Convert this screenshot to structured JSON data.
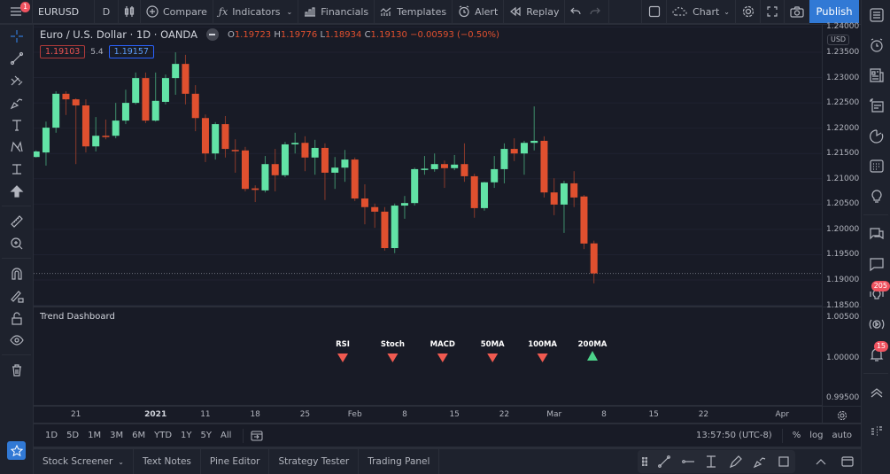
{
  "topbar": {
    "menu_badge": "1",
    "symbol": "EURUSD",
    "interval": "D",
    "compare": "Compare",
    "indicators": "Indicators",
    "financials": "Financials",
    "templates": "Templates",
    "alert": "Alert",
    "replay": "Replay",
    "layout": "Chart",
    "publish": "Publish"
  },
  "legend": {
    "title": "Euro / U.S. Dollar · 1D · OANDA",
    "o_label": "O",
    "o": "1.19723",
    "h_label": "H",
    "h": "1.19776",
    "l_label": "L",
    "l": "1.18934",
    "c_label": "C",
    "c": "1.19130",
    "change": "−0.00593 (−0.50%)",
    "bid": "1.19103",
    "spread": "5.4",
    "ask": "1.19157"
  },
  "price_axis": {
    "currency": "USD",
    "labels": [
      "1.24000",
      "1.23500",
      "1.23000",
      "1.22500",
      "1.22000",
      "1.21500",
      "1.21000",
      "1.20500",
      "1.20000",
      "1.19500",
      "1.19000",
      "1.18500"
    ],
    "pane2_labels": [
      "1.00500",
      "1.00000",
      "0.99500"
    ]
  },
  "colors": {
    "up": "#62e3a6",
    "down": "#e0502f",
    "background": "#181b26",
    "accent": "#3179d5",
    "signal_down": "#f05a50",
    "signal_up": "#4cd38a"
  },
  "chart_data": {
    "type": "candlestick",
    "symbol": "EURUSD",
    "ylim": [
      1.185,
      1.24
    ],
    "ohlc": [
      [
        1.2143,
        1.2156,
        1.2142,
        1.2154
      ],
      [
        1.2152,
        1.2213,
        1.2126,
        1.2201
      ],
      [
        1.2201,
        1.2273,
        1.2191,
        1.2268
      ],
      [
        1.2268,
        1.2273,
        1.2226,
        1.2257
      ],
      [
        1.2257,
        1.2259,
        1.2129,
        1.2245
      ],
      [
        1.2245,
        1.2257,
        1.2152,
        1.2164
      ],
      [
        1.2164,
        1.2222,
        1.2154,
        1.2185
      ],
      [
        1.2185,
        1.2217,
        1.2178,
        1.2184
      ],
      [
        1.2185,
        1.225,
        1.218,
        1.2215
      ],
      [
        1.2215,
        1.2276,
        1.2208,
        1.225
      ],
      [
        1.225,
        1.231,
        1.2247,
        1.2299
      ],
      [
        1.2299,
        1.231,
        1.221,
        1.2215
      ],
      [
        1.2215,
        1.231,
        1.2213,
        1.2254
      ],
      [
        1.2252,
        1.2306,
        1.2247,
        1.2299
      ],
      [
        1.2299,
        1.235,
        1.2266,
        1.2327
      ],
      [
        1.2327,
        1.2345,
        1.2247,
        1.2268
      ],
      [
        1.2268,
        1.2285,
        1.2194,
        1.222
      ],
      [
        1.222,
        1.2227,
        1.2133,
        1.215
      ],
      [
        1.215,
        1.2212,
        1.2138,
        1.2208
      ],
      [
        1.2208,
        1.2224,
        1.2142,
        1.2159
      ],
      [
        1.2157,
        1.2178,
        1.2112,
        1.2156
      ],
      [
        1.2156,
        1.2163,
        1.2075,
        1.208
      ],
      [
        1.2081,
        1.2087,
        1.2054,
        1.2078
      ],
      [
        1.2077,
        1.2145,
        1.2073,
        1.2129
      ],
      [
        1.2129,
        1.2159,
        1.2075,
        1.2107
      ],
      [
        1.2107,
        1.2173,
        1.2103,
        1.2168
      ],
      [
        1.2168,
        1.2191,
        1.215,
        1.2171
      ],
      [
        1.2171,
        1.2184,
        1.2115,
        1.2142
      ],
      [
        1.2142,
        1.2177,
        1.2108,
        1.2161
      ],
      [
        1.2161,
        1.217,
        1.2058,
        1.2112
      ],
      [
        1.2112,
        1.2143,
        1.208,
        1.2122
      ],
      [
        1.2122,
        1.2157,
        1.2094,
        1.2138
      ],
      [
        1.2138,
        1.2142,
        1.2056,
        1.2061
      ],
      [
        1.2061,
        1.2089,
        1.201,
        1.2044
      ],
      [
        1.2044,
        1.2051,
        1.2003,
        1.2035
      ],
      [
        1.2035,
        1.2044,
        1.1958,
        1.1963
      ],
      [
        1.1963,
        1.2051,
        1.1953,
        1.2047
      ],
      [
        1.2047,
        1.2066,
        1.2021,
        1.2052
      ],
      [
        1.2052,
        1.2122,
        1.2047,
        1.2119
      ],
      [
        1.2118,
        1.2145,
        1.2108,
        1.212
      ],
      [
        1.2119,
        1.215,
        1.2114,
        1.2129
      ],
      [
        1.2129,
        1.2136,
        1.2082,
        1.2121
      ],
      [
        1.2121,
        1.2147,
        1.2117,
        1.2128
      ],
      [
        1.2129,
        1.217,
        1.2094,
        1.2105
      ],
      [
        1.2105,
        1.211,
        1.2023,
        1.2042
      ],
      [
        1.2042,
        1.2094,
        1.2037,
        1.2093
      ],
      [
        1.2093,
        1.2145,
        1.2082,
        1.2119
      ],
      [
        1.2119,
        1.217,
        1.2091,
        1.2159
      ],
      [
        1.2159,
        1.218,
        1.2135,
        1.215
      ],
      [
        1.215,
        1.2175,
        1.2108,
        1.2171
      ],
      [
        1.2171,
        1.2243,
        1.2156,
        1.2175
      ],
      [
        1.2175,
        1.2184,
        1.2063,
        1.2073
      ],
      [
        1.2073,
        1.2101,
        1.2028,
        1.2049
      ],
      [
        1.2049,
        1.2096,
        1.1993,
        1.2091
      ],
      [
        1.2091,
        1.2115,
        1.2044,
        1.2063
      ],
      [
        1.2065,
        1.2068,
        1.1961,
        1.1972
      ],
      [
        1.19723,
        1.19776,
        1.18934,
        1.1913
      ]
    ],
    "x_ticks": [
      {
        "bar": 4,
        "label": "21"
      },
      {
        "bar": 12,
        "label": "2021",
        "bold": true
      },
      {
        "bar": 17,
        "label": "11"
      },
      {
        "bar": 22,
        "label": "18"
      },
      {
        "bar": 27,
        "label": "25"
      },
      {
        "bar": 32,
        "label": "Feb"
      },
      {
        "bar": 37,
        "label": "8"
      },
      {
        "bar": 42,
        "label": "15"
      },
      {
        "bar": 47,
        "label": "22"
      },
      {
        "bar": 52,
        "label": "Mar"
      },
      {
        "bar": 57,
        "label": "8"
      },
      {
        "bar": 62,
        "label": "15"
      },
      {
        "bar": 67,
        "label": "22"
      },
      {
        "bar": 74.9,
        "label": "Apr"
      }
    ],
    "last_price": 1.1913
  },
  "trend_dashboard": {
    "title": "Trend Dashboard",
    "signals": [
      {
        "label": "RSI",
        "direction": "down"
      },
      {
        "label": "Stoch",
        "direction": "down"
      },
      {
        "label": "MACD",
        "direction": "down"
      },
      {
        "label": "50MA",
        "direction": "down"
      },
      {
        "label": "100MA",
        "direction": "down"
      },
      {
        "label": "200MA",
        "direction": "up"
      }
    ]
  },
  "range_bar": {
    "ranges": [
      "1D",
      "5D",
      "1M",
      "3M",
      "6M",
      "YTD",
      "1Y",
      "5Y",
      "All"
    ],
    "time": "13:57:50 (UTC-8)",
    "percent": "%",
    "log": "log",
    "auto": "auto"
  },
  "bottom_tabs": [
    "Stock Screener",
    "Text Notes",
    "Pine Editor",
    "Strategy Tester",
    "Trading Panel"
  ],
  "right_sidebar": {
    "ideas_badge": "205",
    "alerts_badge": "15"
  }
}
